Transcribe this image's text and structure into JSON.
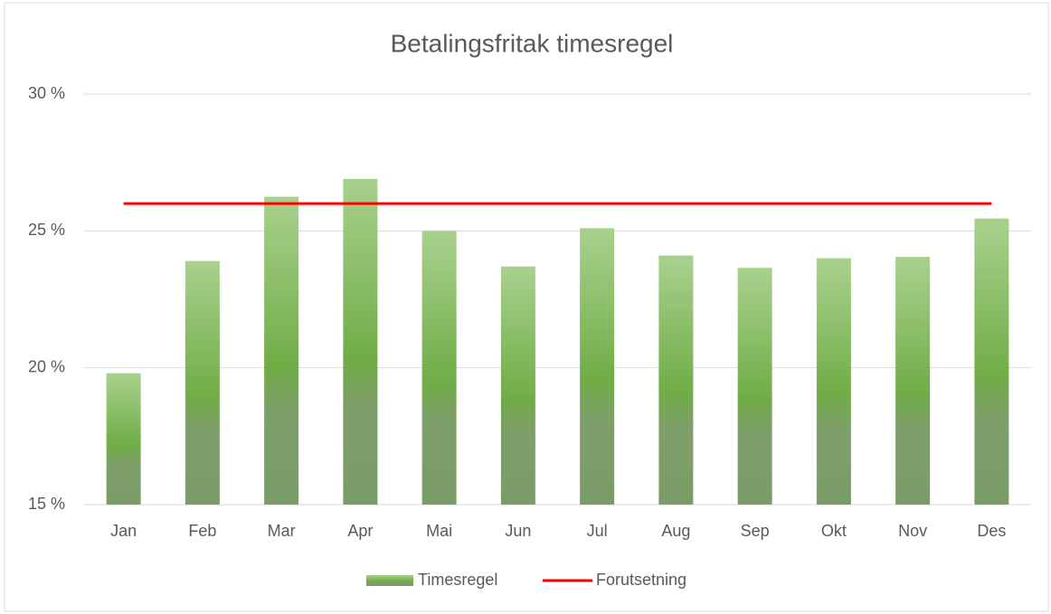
{
  "chart_data": {
    "type": "bar",
    "title": "Betalingsfritak timesregel",
    "categories": [
      "Jan",
      "Feb",
      "Mar",
      "Apr",
      "Mai",
      "Jun",
      "Jul",
      "Aug",
      "Sep",
      "Okt",
      "Nov",
      "Des"
    ],
    "series": [
      {
        "name": "Timesregel",
        "type": "bar",
        "color": "#70ad47",
        "values": [
          19.8,
          23.9,
          26.25,
          26.9,
          25.0,
          23.7,
          25.1,
          24.1,
          23.65,
          24.0,
          24.05,
          25.45
        ]
      },
      {
        "name": "Forutsetning",
        "type": "line",
        "color": "#ff0000",
        "values": [
          26,
          26,
          26,
          26,
          26,
          26,
          26,
          26,
          26,
          26,
          26,
          26
        ]
      }
    ],
    "ylim": [
      15,
      30
    ],
    "yticks": [
      {
        "value": 15,
        "label": "15 %"
      },
      {
        "value": 20,
        "label": "20 %"
      },
      {
        "value": 25,
        "label": "25 %"
      },
      {
        "value": 30,
        "label": "30 %"
      }
    ],
    "grid": true,
    "legend": "bottom"
  }
}
